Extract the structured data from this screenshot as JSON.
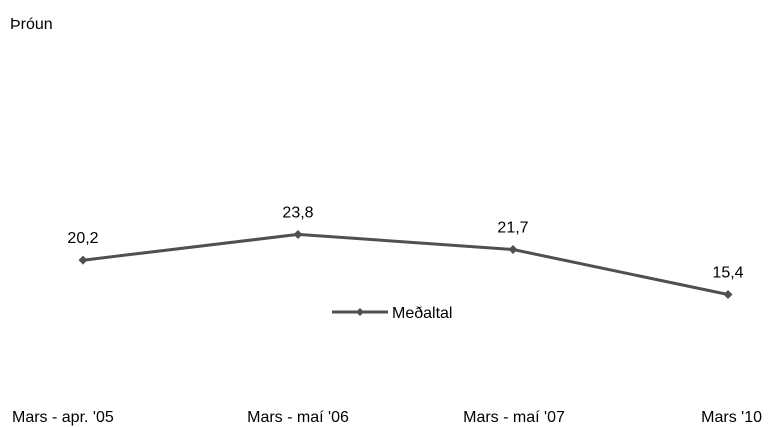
{
  "chart_data": {
    "type": "line",
    "title": "Þróun",
    "categories": [
      "Mars - apr. '05",
      "Mars - maí '06",
      "Mars - maí '07",
      "Mars '10"
    ],
    "series": [
      {
        "name": "Meðaltal",
        "values": [
          20.2,
          23.8,
          21.7,
          15.4
        ],
        "value_labels": [
          "20,2",
          "23,8",
          "21,7",
          "15,4"
        ],
        "color": "#505050",
        "marker": "diamond"
      }
    ],
    "grid": false,
    "legend_position": "below-plot"
  }
}
